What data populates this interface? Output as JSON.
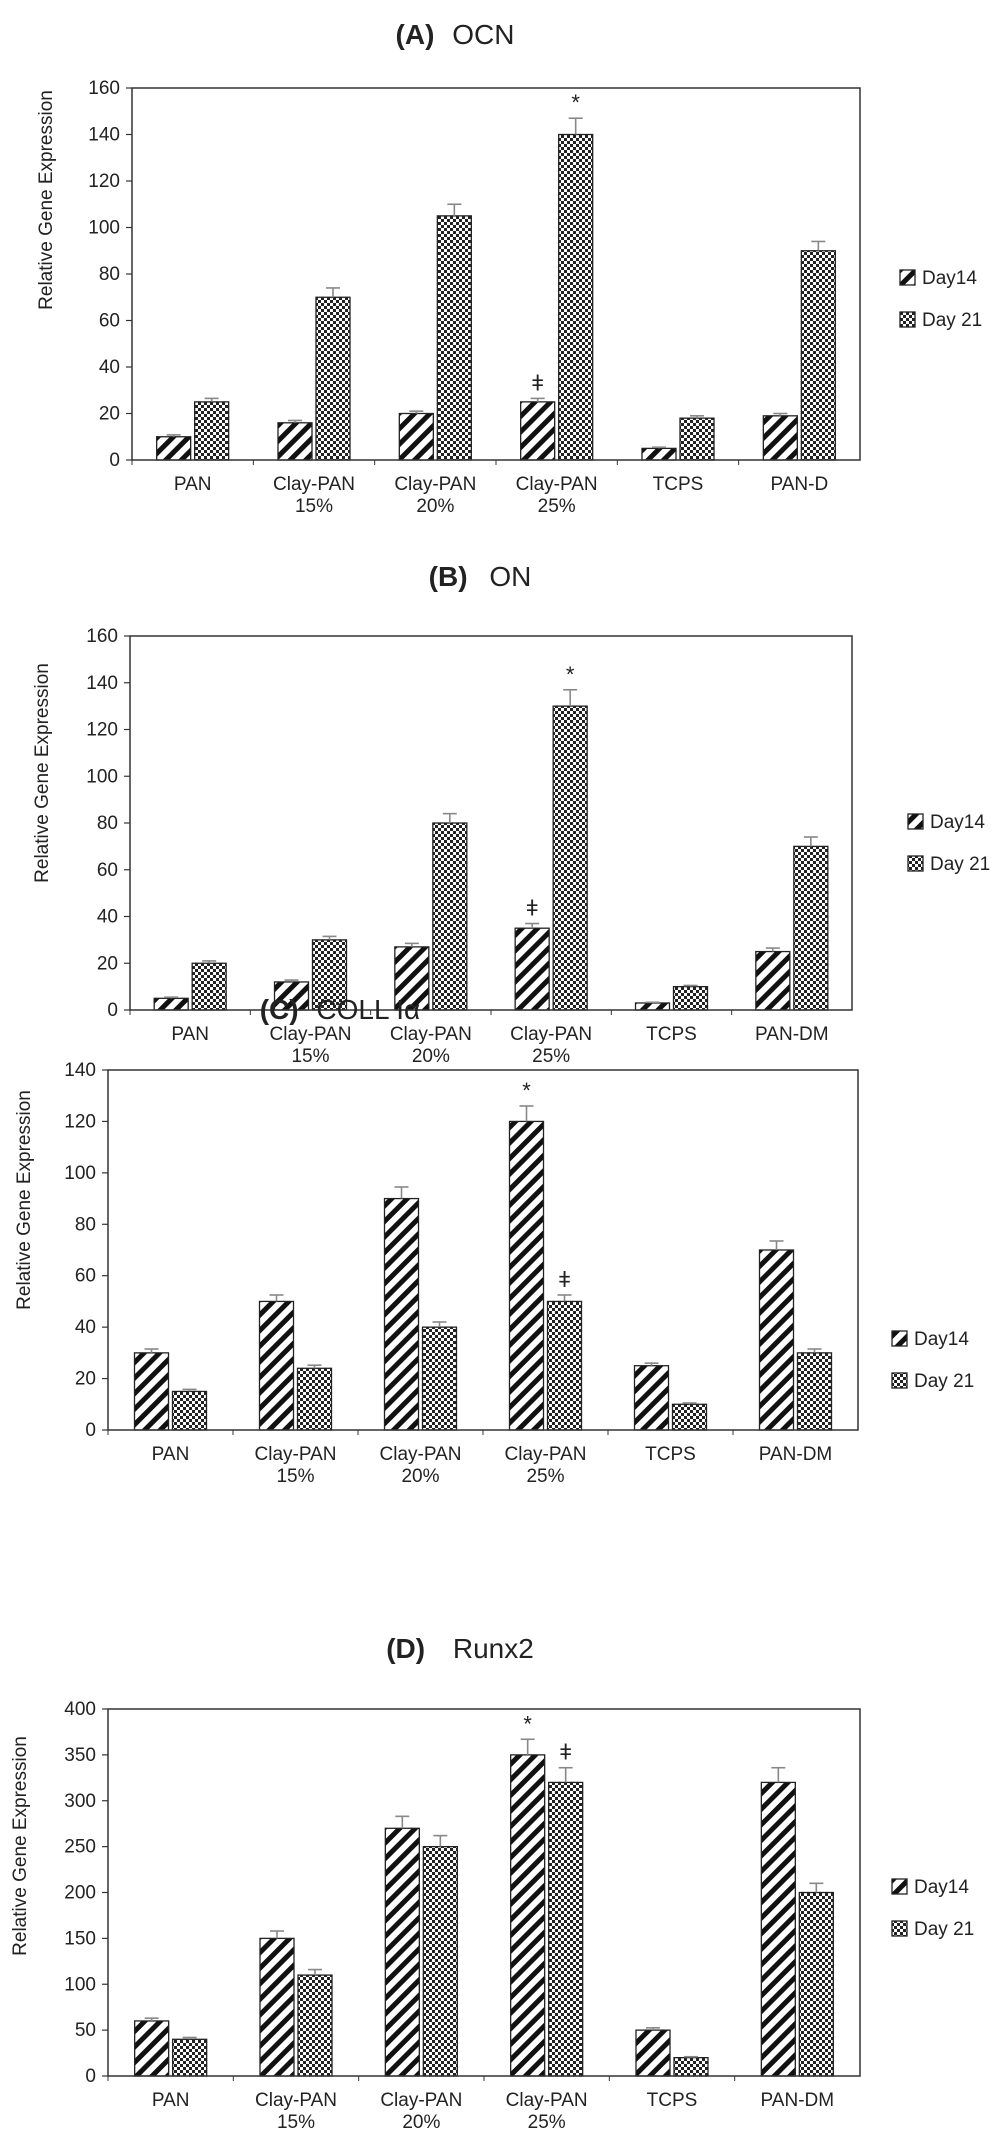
{
  "chart_data": [
    {
      "type": "bar",
      "title_letter": "(A)",
      "title": "OCN",
      "ylabel": "Relative Gene Expression",
      "xlabel": "",
      "ylim": [
        0,
        160
      ],
      "yticks": [
        0,
        20,
        40,
        60,
        80,
        100,
        120,
        140,
        160
      ],
      "categories": [
        [
          "PAN"
        ],
        [
          "Clay-PAN",
          "15%"
        ],
        [
          "Clay-PAN",
          "20%"
        ],
        [
          "Clay-PAN",
          "25%"
        ],
        [
          "TCPS"
        ],
        [
          "PAN-D"
        ]
      ],
      "series": [
        {
          "name": "Day14",
          "pattern": "diagonal",
          "values": [
            10,
            16,
            20,
            25,
            5,
            19
          ],
          "errors": [
            0.8,
            1,
            1,
            1.5,
            0.5,
            1
          ]
        },
        {
          "name": "Day 21",
          "pattern": "checker",
          "values": [
            25,
            70,
            105,
            140,
            18,
            90
          ],
          "errors": [
            1.5,
            4,
            5,
            7,
            1,
            4
          ]
        }
      ],
      "annotations": [
        {
          "text": "ǂ",
          "series": 0,
          "category": 3
        },
        {
          "text": "*",
          "series": 1,
          "category": 3
        }
      ],
      "legend_position": "right"
    },
    {
      "type": "bar",
      "title_letter": "(B)",
      "title": "ON",
      "ylabel": "Relative Gene Expression",
      "xlabel": "",
      "ylim": [
        0,
        160
      ],
      "yticks": [
        0,
        20,
        40,
        60,
        80,
        100,
        120,
        140,
        160
      ],
      "categories": [
        [
          "PAN"
        ],
        [
          "Clay-PAN",
          "15%"
        ],
        [
          "Clay-PAN",
          "20%"
        ],
        [
          "Clay-PAN",
          "25%"
        ],
        [
          "TCPS"
        ],
        [
          "PAN-DM"
        ]
      ],
      "series": [
        {
          "name": "Day14",
          "pattern": "diagonal",
          "values": [
            5,
            12,
            27,
            35,
            3,
            25
          ],
          "errors": [
            0.5,
            0.8,
            1.5,
            2,
            0.3,
            1.5
          ]
        },
        {
          "name": "Day 21",
          "pattern": "checker",
          "values": [
            20,
            30,
            80,
            130,
            10,
            70
          ],
          "errors": [
            1,
            1.5,
            4,
            7,
            0.5,
            4
          ]
        }
      ],
      "annotations": [
        {
          "text": "ǂ",
          "series": 0,
          "category": 3
        },
        {
          "text": "*",
          "series": 1,
          "category": 3
        }
      ],
      "legend_position": "right"
    },
    {
      "type": "bar",
      "title_letter": "(C)",
      "title": "COLL Iα",
      "ylabel": "Relative Gene Expression",
      "xlabel": "",
      "ylim": [
        0,
        140
      ],
      "yticks": [
        0,
        20,
        40,
        60,
        80,
        100,
        120,
        140
      ],
      "categories": [
        [
          "PAN"
        ],
        [
          "Clay-PAN",
          "15%"
        ],
        [
          "Clay-PAN",
          "20%"
        ],
        [
          "Clay-PAN",
          "25%"
        ],
        [
          "TCPS"
        ],
        [
          "PAN-DM"
        ]
      ],
      "series": [
        {
          "name": "Day14",
          "pattern": "diagonal",
          "values": [
            30,
            50,
            90,
            120,
            25,
            70
          ],
          "errors": [
            1.5,
            2.5,
            4.5,
            6,
            1,
            3.5
          ]
        },
        {
          "name": "Day 21",
          "pattern": "checker",
          "values": [
            15,
            24,
            40,
            50,
            10,
            30
          ],
          "errors": [
            0.8,
            1.2,
            2,
            2.5,
            0.5,
            1.5
          ]
        }
      ],
      "annotations": [
        {
          "text": "*",
          "series": 0,
          "category": 3
        },
        {
          "text": "ǂ",
          "series": 1,
          "category": 3
        }
      ],
      "legend_position": "right"
    },
    {
      "type": "bar",
      "title_letter": "(D)",
      "title": "Runx2",
      "ylabel": "Relative Gene Expression",
      "xlabel": "",
      "ylim": [
        0,
        400
      ],
      "yticks": [
        0,
        50,
        100,
        150,
        200,
        250,
        300,
        350,
        400
      ],
      "categories": [
        [
          "PAN"
        ],
        [
          "Clay-PAN",
          "15%"
        ],
        [
          "Clay-PAN",
          "20%"
        ],
        [
          "Clay-PAN",
          "25%"
        ],
        [
          "TCPS"
        ],
        [
          "PAN-DM"
        ]
      ],
      "series": [
        {
          "name": "Day14",
          "pattern": "diagonal",
          "values": [
            60,
            150,
            270,
            350,
            50,
            320
          ],
          "errors": [
            3,
            8,
            13,
            17,
            2.5,
            16
          ]
        },
        {
          "name": "Day 21",
          "pattern": "checker",
          "values": [
            40,
            110,
            250,
            320,
            20,
            200
          ],
          "errors": [
            2,
            6,
            12,
            16,
            1,
            10
          ]
        }
      ],
      "annotations": [
        {
          "text": "*",
          "series": 0,
          "category": 3
        },
        {
          "text": "ǂ",
          "series": 1,
          "category": 3
        }
      ],
      "legend_position": "right"
    }
  ]
}
